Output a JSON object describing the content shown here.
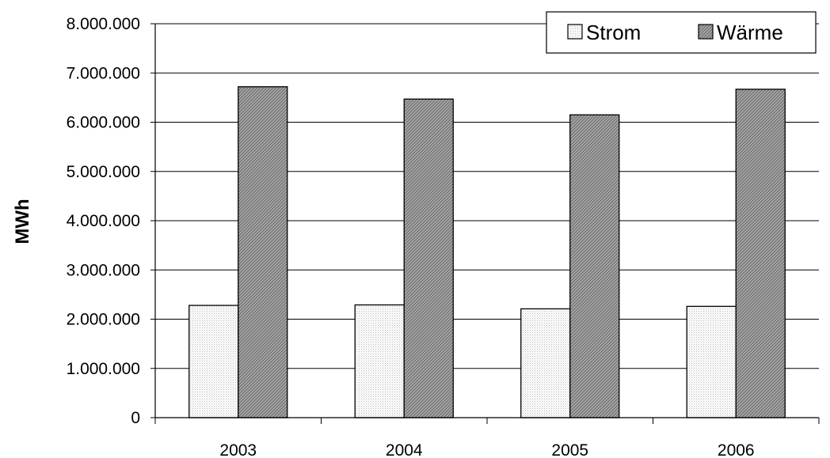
{
  "chart_data": {
    "type": "bar",
    "categories": [
      "2003",
      "2004",
      "2005",
      "2006"
    ],
    "series": [
      {
        "name": "Strom",
        "values": [
          2280000,
          2290000,
          2210000,
          2260000
        ],
        "color": "#f4f4f4",
        "pattern": "fine-dots"
      },
      {
        "name": "Wärme",
        "values": [
          6720000,
          6470000,
          6150000,
          6670000
        ],
        "color": "#9a9a9a",
        "pattern": "diagonal-hatch"
      }
    ],
    "ylabel": "MWh",
    "xlabel": "",
    "title": "",
    "ylim": [
      0,
      8000000
    ],
    "yticks": [
      0,
      1000000,
      2000000,
      3000000,
      4000000,
      5000000,
      6000000,
      7000000,
      8000000
    ],
    "ytick_labels": [
      "0",
      "1.000.000",
      "2.000.000",
      "3.000.000",
      "4.000.000",
      "5.000.000",
      "6.000.000",
      "7.000.000",
      "8.000.000"
    ],
    "grid": "horizontal",
    "legend_position": "top-right",
    "legend": [
      "Strom",
      "Wärme"
    ]
  }
}
